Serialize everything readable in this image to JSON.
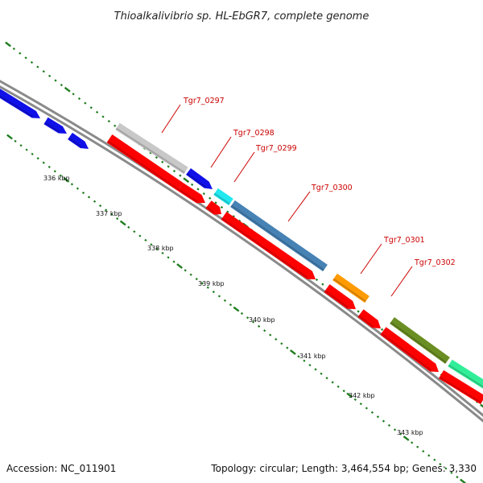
{
  "title": "Thioalkalivibrio sp. HL-EbGR7, complete genome",
  "footer": {
    "accession": "Accession: NC_011901",
    "summary": "Topology: circular; Length: 3,464,554 bp; Genes: 3,330"
  },
  "colors": {
    "backbone": "#8a8a8a",
    "tick": "#1e7d1e",
    "label": "#cc0000"
  },
  "kbp_labels": [
    "336 kbp",
    "337 kbp",
    "338 kbp",
    "339 kbp",
    "340 kbp",
    "341 kbp",
    "342 kbp",
    "343 kbp"
  ],
  "gene_labels": [
    "Tgr7_0297",
    "Tgr7_0298",
    "Tgr7_0299",
    "Tgr7_0300",
    "Tgr7_0301",
    "Tgr7_0302"
  ],
  "features": {
    "upper_track": [
      {
        "name": "blue-gene-1",
        "color": "#1010e8"
      },
      {
        "name": "blue-gene-2",
        "color": "#1010e8"
      },
      {
        "name": "blue-gene-3",
        "color": "#1010e8"
      },
      {
        "name": "Tgr7_0297",
        "color": "#c8c8c8"
      },
      {
        "name": "Tgr7_0298",
        "color": "#1010e8"
      },
      {
        "name": "Tgr7_0299",
        "color": "#22e8f0"
      },
      {
        "name": "Tgr7_0300",
        "color": "#4682b4"
      },
      {
        "name": "Tgr7_0301",
        "color": "#ff9a00"
      },
      {
        "name": "Tgr7_0302",
        "color": "#6b8e23"
      },
      {
        "name": "green-gene",
        "color": "#33ee99"
      }
    ],
    "lower_track_color": "#ff0000"
  }
}
